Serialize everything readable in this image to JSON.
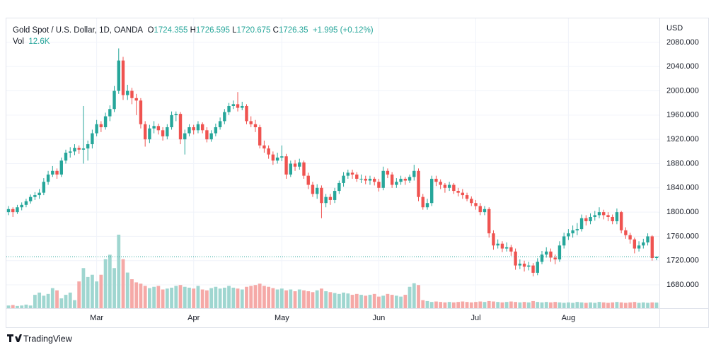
{
  "chart_data": {
    "type": "candlestick",
    "legend": {
      "symbol": "Gold Spot / U.S. Dollar, 1D, OANDA",
      "fields": [
        {
          "label": "O",
          "value": "1724.355"
        },
        {
          "label": "H",
          "value": "1726.595"
        },
        {
          "label": "L",
          "value": "1720.675"
        },
        {
          "label": "C",
          "value": "1726.35"
        }
      ],
      "change": "+1.995 (+0.12%)",
      "vol_label": "Vol",
      "vol_value": "12.6K"
    },
    "currency": "USD",
    "brand": "TradingView",
    "up_color": "#26a69a",
    "down_color": "#ef5350",
    "up_volume_color": "#9fd6d0",
    "down_volume_color": "#f5a9a7",
    "grid": true,
    "ylim": [
      1641.6,
      2119.5
    ],
    "yticks": [
      {
        "value": 1680,
        "label": "1680.000"
      },
      {
        "value": 1720,
        "label": "1720.000"
      },
      {
        "value": 1760,
        "label": "1760.000"
      },
      {
        "value": 1800,
        "label": "1800.000"
      },
      {
        "value": 1840,
        "label": "1840.000"
      },
      {
        "value": 1880,
        "label": "1880.000"
      },
      {
        "value": 1920,
        "label": "1920.000"
      },
      {
        "value": 1960,
        "label": "1960.000"
      },
      {
        "value": 2000,
        "label": "2000.000"
      },
      {
        "value": 2040,
        "label": "2040.000"
      },
      {
        "value": 2080,
        "label": "2080.000"
      }
    ],
    "categories": [
      null,
      null,
      null,
      null,
      null,
      null,
      null,
      null,
      null,
      null,
      null,
      null,
      null,
      null,
      null,
      null,
      null,
      null,
      null,
      null,
      "Mar",
      null,
      null,
      null,
      null,
      null,
      null,
      null,
      null,
      null,
      null,
      null,
      null,
      null,
      null,
      null,
      null,
      null,
      null,
      null,
      null,
      null,
      "Apr",
      null,
      null,
      null,
      null,
      null,
      null,
      null,
      null,
      null,
      null,
      null,
      null,
      null,
      null,
      null,
      null,
      null,
      null,
      null,
      "May",
      null,
      null,
      null,
      null,
      null,
      null,
      null,
      null,
      null,
      null,
      null,
      null,
      null,
      null,
      null,
      null,
      null,
      null,
      null,
      null,
      null,
      "Jun",
      null,
      null,
      null,
      null,
      null,
      null,
      null,
      null,
      null,
      null,
      null,
      null,
      null,
      null,
      null,
      null,
      null,
      null,
      null,
      null,
      null,
      "Jul",
      null,
      null,
      null,
      null,
      null,
      null,
      null,
      null,
      null,
      null,
      null,
      null,
      null,
      null,
      null,
      null,
      null,
      null,
      null,
      null,
      "Aug",
      null,
      null,
      null,
      null,
      null,
      null,
      null,
      null,
      null,
      null,
      null,
      null,
      null,
      null,
      null,
      null,
      null,
      null,
      null,
      null
    ],
    "ohlc": [
      [
        1800,
        1810,
        1795,
        1805
      ],
      [
        1805,
        1808,
        1792,
        1800
      ],
      [
        1800,
        1812,
        1797,
        1808
      ],
      [
        1808,
        1816,
        1803,
        1812
      ],
      [
        1812,
        1822,
        1808,
        1818
      ],
      [
        1818,
        1829,
        1814,
        1825
      ],
      [
        1825,
        1833,
        1820,
        1828
      ],
      [
        1828,
        1838,
        1822,
        1832
      ],
      [
        1832,
        1856,
        1828,
        1850
      ],
      [
        1850,
        1868,
        1845,
        1862
      ],
      [
        1862,
        1876,
        1858,
        1868
      ],
      [
        1868,
        1872,
        1855,
        1862
      ],
      [
        1862,
        1890,
        1858,
        1885
      ],
      [
        1885,
        1903,
        1880,
        1898
      ],
      [
        1898,
        1907,
        1890,
        1900
      ],
      [
        1900,
        1912,
        1894,
        1906
      ],
      [
        1906,
        1910,
        1896,
        1903
      ],
      [
        1903,
        1975,
        1880,
        1905
      ],
      [
        1905,
        1918,
        1885,
        1912
      ],
      [
        1912,
        1936,
        1905,
        1930
      ],
      [
        1930,
        1952,
        1925,
        1945
      ],
      [
        1945,
        1950,
        1932,
        1940
      ],
      [
        1940,
        1964,
        1936,
        1958
      ],
      [
        1958,
        1976,
        1950,
        1970
      ],
      [
        1970,
        2008,
        1965,
        2000
      ],
      [
        2000,
        2070,
        1995,
        2050
      ],
      [
        2050,
        2056,
        1985,
        1993
      ],
      [
        1993,
        2010,
        1985,
        2000
      ],
      [
        2000,
        2005,
        1978,
        1988
      ],
      [
        1988,
        1995,
        1960,
        1984
      ],
      [
        1984,
        1988,
        1938,
        1945
      ],
      [
        1945,
        1950,
        1908,
        1920
      ],
      [
        1920,
        1944,
        1914,
        1938
      ],
      [
        1938,
        1950,
        1930,
        1942
      ],
      [
        1942,
        1946,
        1928,
        1935
      ],
      [
        1935,
        1940,
        1918,
        1925
      ],
      [
        1925,
        1945,
        1920,
        1940
      ],
      [
        1940,
        1966,
        1936,
        1960
      ],
      [
        1960,
        1966,
        1950,
        1962
      ],
      [
        1962,
        1965,
        1912,
        1920
      ],
      [
        1920,
        1936,
        1895,
        1930
      ],
      [
        1930,
        1945,
        1925,
        1940
      ],
      [
        1940,
        1944,
        1928,
        1935
      ],
      [
        1935,
        1950,
        1930,
        1945
      ],
      [
        1945,
        1948,
        1930,
        1935
      ],
      [
        1935,
        1940,
        1915,
        1920
      ],
      [
        1920,
        1935,
        1916,
        1930
      ],
      [
        1930,
        1946,
        1925,
        1940
      ],
      [
        1940,
        1956,
        1936,
        1950
      ],
      [
        1950,
        1970,
        1945,
        1965
      ],
      [
        1965,
        1980,
        1960,
        1975
      ],
      [
        1975,
        1984,
        1970,
        1978
      ],
      [
        1978,
        1998,
        1966,
        1972
      ],
      [
        1972,
        1982,
        1968,
        1975
      ],
      [
        1975,
        1978,
        1945,
        1950
      ],
      [
        1950,
        1958,
        1940,
        1945
      ],
      [
        1945,
        1952,
        1932,
        1940
      ],
      [
        1940,
        1944,
        1905,
        1910
      ],
      [
        1910,
        1918,
        1898,
        1905
      ],
      [
        1905,
        1910,
        1888,
        1895
      ],
      [
        1895,
        1900,
        1878,
        1885
      ],
      [
        1885,
        1898,
        1880,
        1890
      ],
      [
        1890,
        1910,
        1884,
        1892
      ],
      [
        1892,
        1896,
        1855,
        1862
      ],
      [
        1862,
        1885,
        1858,
        1880
      ],
      [
        1880,
        1886,
        1868,
        1875
      ],
      [
        1875,
        1888,
        1870,
        1882
      ],
      [
        1882,
        1885,
        1855,
        1860
      ],
      [
        1860,
        1865,
        1838,
        1845
      ],
      [
        1845,
        1850,
        1825,
        1830
      ],
      [
        1830,
        1846,
        1822,
        1840
      ],
      [
        1840,
        1844,
        1790,
        1815
      ],
      [
        1815,
        1830,
        1808,
        1825
      ],
      [
        1825,
        1830,
        1812,
        1820
      ],
      [
        1820,
        1840,
        1815,
        1835
      ],
      [
        1835,
        1852,
        1830,
        1848
      ],
      [
        1848,
        1866,
        1842,
        1860
      ],
      [
        1860,
        1870,
        1855,
        1865
      ],
      [
        1865,
        1870,
        1855,
        1862
      ],
      [
        1862,
        1866,
        1850,
        1855
      ],
      [
        1855,
        1862,
        1848,
        1855
      ],
      [
        1855,
        1860,
        1846,
        1852
      ],
      [
        1852,
        1860,
        1845,
        1855
      ],
      [
        1855,
        1858,
        1844,
        1850
      ],
      [
        1850,
        1855,
        1834,
        1840
      ],
      [
        1840,
        1875,
        1836,
        1868
      ],
      [
        1868,
        1872,
        1856,
        1862
      ],
      [
        1862,
        1866,
        1840,
        1845
      ],
      [
        1845,
        1856,
        1840,
        1850
      ],
      [
        1850,
        1860,
        1845,
        1855
      ],
      [
        1855,
        1858,
        1845,
        1852
      ],
      [
        1852,
        1862,
        1848,
        1858
      ],
      [
        1858,
        1878,
        1852,
        1868
      ],
      [
        1868,
        1872,
        1818,
        1825
      ],
      [
        1825,
        1830,
        1804,
        1808
      ],
      [
        1808,
        1822,
        1804,
        1815
      ],
      [
        1815,
        1860,
        1810,
        1855
      ],
      [
        1855,
        1860,
        1843,
        1850
      ],
      [
        1850,
        1854,
        1838,
        1845
      ],
      [
        1845,
        1848,
        1832,
        1840
      ],
      [
        1840,
        1850,
        1835,
        1845
      ],
      [
        1845,
        1848,
        1830,
        1835
      ],
      [
        1835,
        1840,
        1826,
        1832
      ],
      [
        1832,
        1838,
        1822,
        1828
      ],
      [
        1828,
        1832,
        1818,
        1822
      ],
      [
        1822,
        1826,
        1810,
        1815
      ],
      [
        1815,
        1820,
        1804,
        1810
      ],
      [
        1810,
        1815,
        1795,
        1800
      ],
      [
        1800,
        1810,
        1795,
        1805
      ],
      [
        1805,
        1808,
        1758,
        1765
      ],
      [
        1765,
        1770,
        1738,
        1745
      ],
      [
        1745,
        1755,
        1740,
        1748
      ],
      [
        1748,
        1752,
        1734,
        1740
      ],
      [
        1740,
        1750,
        1735,
        1742
      ],
      [
        1742,
        1746,
        1728,
        1735
      ],
      [
        1735,
        1740,
        1705,
        1712
      ],
      [
        1712,
        1722,
        1706,
        1715
      ],
      [
        1715,
        1720,
        1702,
        1710
      ],
      [
        1710,
        1718,
        1704,
        1712
      ],
      [
        1712,
        1716,
        1694,
        1700
      ],
      [
        1700,
        1724,
        1696,
        1718
      ],
      [
        1718,
        1736,
        1714,
        1730
      ],
      [
        1730,
        1742,
        1725,
        1735
      ],
      [
        1735,
        1740,
        1718,
        1725
      ],
      [
        1725,
        1730,
        1714,
        1722
      ],
      [
        1722,
        1752,
        1718,
        1745
      ],
      [
        1745,
        1766,
        1740,
        1760
      ],
      [
        1760,
        1772,
        1754,
        1765
      ],
      [
        1765,
        1778,
        1758,
        1770
      ],
      [
        1770,
        1782,
        1762,
        1772
      ],
      [
        1772,
        1796,
        1768,
        1790
      ],
      [
        1790,
        1795,
        1778,
        1785
      ],
      [
        1785,
        1798,
        1780,
        1792
      ],
      [
        1792,
        1802,
        1786,
        1795
      ],
      [
        1795,
        1808,
        1790,
        1800
      ],
      [
        1800,
        1804,
        1788,
        1795
      ],
      [
        1795,
        1800,
        1785,
        1792
      ],
      [
        1792,
        1796,
        1780,
        1785
      ],
      [
        1785,
        1806,
        1780,
        1800
      ],
      [
        1800,
        1802,
        1765,
        1770
      ],
      [
        1770,
        1775,
        1756,
        1762
      ],
      [
        1762,
        1766,
        1748,
        1755
      ],
      [
        1755,
        1758,
        1732,
        1740
      ],
      [
        1740,
        1752,
        1735,
        1745
      ],
      [
        1745,
        1756,
        1740,
        1750
      ],
      [
        1750,
        1765,
        1745,
        1760
      ],
      [
        1760,
        1762,
        1720,
        1724.355
      ],
      [
        1724.355,
        1726.595,
        1720.675,
        1726.35
      ]
    ],
    "volume": [
      6,
      7,
      5,
      6,
      8,
      6,
      30,
      35,
      28,
      32,
      45,
      40,
      22,
      30,
      35,
      18,
      60,
      90,
      70,
      75,
      60,
      75,
      110,
      120,
      90,
      165,
      110,
      80,
      65,
      58,
      55,
      50,
      45,
      48,
      50,
      42,
      44,
      46,
      50,
      52,
      48,
      46,
      44,
      50,
      42,
      40,
      45,
      48,
      44,
      46,
      50,
      46,
      44,
      42,
      48,
      50,
      52,
      55,
      50,
      48,
      45,
      42,
      44,
      40,
      42,
      38,
      42,
      40,
      38,
      36,
      40,
      44,
      38,
      36,
      34,
      32,
      35,
      33,
      30,
      32,
      30,
      28,
      30,
      32,
      26,
      28,
      32,
      30,
      28,
      26,
      30,
      48,
      56,
      52,
      18,
      16,
      14,
      15,
      14,
      13,
      14,
      13,
      14,
      15,
      14,
      13,
      14,
      15,
      14,
      16,
      15,
      14,
      13,
      14,
      15,
      14,
      13,
      14,
      13,
      16,
      14,
      13,
      14,
      13,
      14,
      13,
      12,
      13,
      12,
      14,
      13,
      12,
      13,
      12,
      14,
      13,
      12,
      13,
      14,
      13,
      12,
      13,
      14,
      12,
      13,
      12,
      13,
      12.6
    ]
  }
}
